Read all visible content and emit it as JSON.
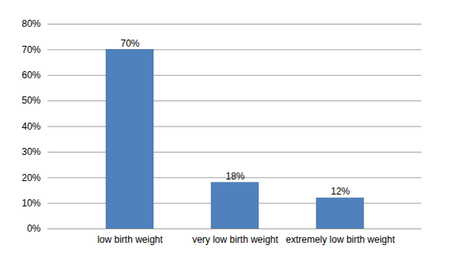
{
  "chart_data": {
    "type": "bar",
    "categories": [
      "low birth weight",
      "very low birth weight",
      "extremely low birth weight"
    ],
    "values": [
      70,
      18,
      12
    ],
    "value_labels": [
      "70%",
      "18%",
      "12%"
    ],
    "data_labels": true,
    "color": "#4f81bd",
    "ylim": [
      0,
      80
    ],
    "yticks": [
      {
        "value": 0,
        "label": "0%"
      },
      {
        "value": 10,
        "label": "10%"
      },
      {
        "value": 20,
        "label": "20%"
      },
      {
        "value": 30,
        "label": "30%"
      },
      {
        "value": 40,
        "label": "40%"
      },
      {
        "value": 50,
        "label": "50%"
      },
      {
        "value": 60,
        "label": "60%"
      },
      {
        "value": 70,
        "label": "70%"
      },
      {
        "value": 80,
        "label": "80%"
      }
    ],
    "grid": true
  }
}
